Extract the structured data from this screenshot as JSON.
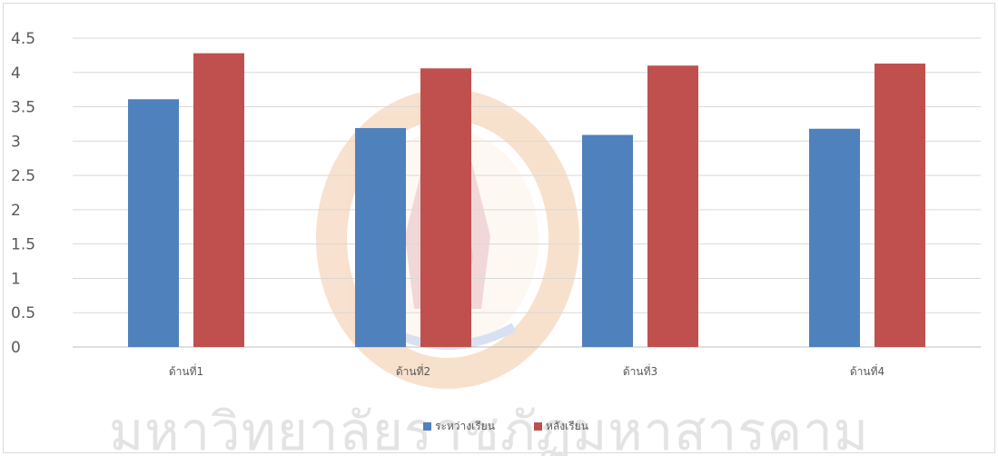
{
  "chart_data": {
    "type": "bar",
    "title": "",
    "xlabel": "",
    "ylabel": "",
    "categories": [
      "ด้านที่1",
      "ด้านที่2",
      "ด้านที่3",
      "ด้านที่4"
    ],
    "series": [
      {
        "name": "ระหว่างเรียน",
        "values": [
          3.61,
          3.19,
          3.09,
          3.18
        ],
        "color": "#4f81bd"
      },
      {
        "name": "หลังเรียน",
        "values": [
          4.28,
          4.06,
          4.1,
          4.13
        ],
        "color": "#c0504d"
      }
    ],
    "ylim": [
      0,
      4.5
    ],
    "yticks": [
      "0",
      "0.5",
      "1",
      "1.5",
      "2",
      "2.5",
      "3",
      "3.5",
      "4",
      "4.5"
    ],
    "grid": true,
    "legend_position": "bottom"
  },
  "watermark": {
    "text": "มหาวิทยาลัยราชภัฏมหาสารคาม",
    "seal_colors": {
      "orange": "#f5c9a8",
      "red": "#d9a8a8",
      "blue": "#b7c7e3"
    }
  }
}
